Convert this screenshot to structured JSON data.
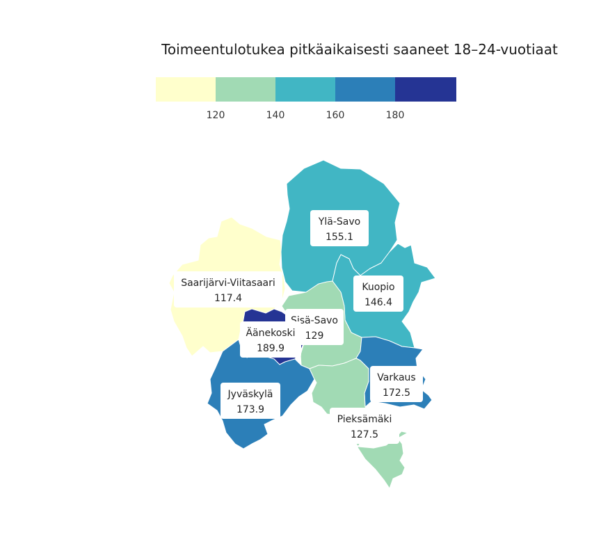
{
  "title": "Toimeentulotukea pitkäaikaisesti saaneet 18–24-vuotiaat",
  "legend": {
    "breaks": [
      "120",
      "140",
      "160",
      "180"
    ],
    "colors": [
      "#ffffcc",
      "#a1dab4",
      "#41b6c4",
      "#2c7fb8",
      "#253494"
    ]
  },
  "regions": [
    {
      "name": "Ylä-Savo",
      "value": "155.1",
      "color": "#41b6c4"
    },
    {
      "name": "Kuopio",
      "value": "146.4",
      "color": "#41b6c4"
    },
    {
      "name": "Saarijärvi-Viitasaari",
      "value": "117.4",
      "color": "#ffffcc"
    },
    {
      "name": "Äänekoski",
      "value": "189.9",
      "color": "#253494"
    },
    {
      "name": "Sisä-Savo",
      "value": "129",
      "color": "#a1dab4"
    },
    {
      "name": "Jyväskylä",
      "value": "173.9",
      "color": "#2c7fb8"
    },
    {
      "name": "Varkaus",
      "value": "172.5",
      "color": "#2c7fb8"
    },
    {
      "name": "Pieksämäki",
      "value": "127.5",
      "color": "#a1dab4"
    }
  ]
}
